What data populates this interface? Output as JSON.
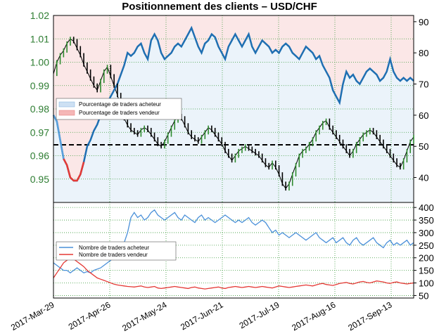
{
  "chart_data": [
    {
      "type": "line",
      "title": "Positionnement des clients – USD/CHF",
      "x_labels": [
        "2017-Mar-29",
        "2017-Apr-26",
        "2017-May-24",
        "2017-Jun-21",
        "2017-Jul-19",
        "2017-Aug-16",
        "2017-Sep-13"
      ],
      "left_axis": {
        "ylim": [
          0.94,
          1.02
        ],
        "ticks": [
          "1.02",
          "1.01",
          "1.00",
          "0.99",
          "0.98",
          "0.97",
          "0.96",
          "0.95"
        ]
      },
      "right_axis": {
        "ylim": [
          32,
          92
        ],
        "ticks": [
          "90",
          "80",
          "70",
          "60",
          "50",
          "40"
        ]
      },
      "reference_line": 50.5,
      "legend": [
        "Pourcentage de traders acheteur",
        "Pourcentage de traders vendeur"
      ],
      "series": [
        {
          "name": "Pourcentage de traders acheteur",
          "color": "#1f6fb2",
          "values": [
            60,
            58,
            52,
            46,
            44,
            40,
            39,
            39,
            41,
            45,
            50,
            52,
            55,
            57,
            60,
            62,
            64,
            66,
            68,
            70,
            73,
            76,
            80,
            79,
            80,
            82,
            83,
            80,
            78,
            84,
            86,
            84,
            80,
            78,
            79,
            80,
            82,
            83,
            82,
            84,
            86,
            88,
            85,
            82,
            80,
            83,
            84,
            86,
            85,
            82,
            80,
            78,
            82,
            84,
            86,
            84,
            82,
            84,
            86,
            82,
            80,
            82,
            84,
            83,
            82,
            80,
            81,
            80,
            82,
            83,
            82,
            80,
            79,
            78,
            80,
            82,
            81,
            80,
            78,
            79,
            76,
            74,
            72,
            68,
            66,
            64,
            70,
            74,
            72,
            73,
            71,
            70,
            72,
            74,
            75,
            74,
            73,
            71,
            72,
            74,
            78,
            74,
            72,
            71,
            72,
            71,
            72,
            71
          ]
        },
        {
          "name": "USD/CHF",
          "color": "#000000",
          "values": [
            0.995,
            1.0,
            1.003,
            1.005,
            1.008,
            1.01,
            1.009,
            1.006,
            1.003,
            0.999,
            0.996,
            0.993,
            0.99,
            0.988,
            0.992,
            0.996,
            0.998,
            0.994,
            0.99,
            0.986,
            0.98,
            0.976,
            0.973,
            0.971,
            0.97,
            0.969,
            0.971,
            0.972,
            0.971,
            0.969,
            0.967,
            0.965,
            0.964,
            0.966,
            0.969,
            0.972,
            0.975,
            0.977,
            0.976,
            0.973,
            0.97,
            0.968,
            0.967,
            0.966,
            0.968,
            0.97,
            0.972,
            0.971,
            0.969,
            0.967,
            0.965,
            0.962,
            0.96,
            0.958,
            0.96,
            0.962,
            0.963,
            0.964,
            0.963,
            0.962,
            0.961,
            0.96,
            0.958,
            0.956,
            0.955,
            0.957,
            0.955,
            0.952,
            0.948,
            0.946,
            0.948,
            0.952,
            0.956,
            0.96,
            0.962,
            0.963,
            0.965,
            0.967,
            0.97,
            0.972,
            0.974,
            0.975,
            0.972,
            0.97,
            0.968,
            0.966,
            0.964,
            0.962,
            0.96,
            0.962,
            0.965,
            0.967,
            0.969,
            0.97,
            0.971,
            0.97,
            0.968,
            0.966,
            0.964,
            0.962,
            0.96,
            0.958,
            0.956,
            0.955,
            0.958,
            0.962,
            0.966,
            0.968
          ]
        }
      ]
    },
    {
      "type": "line",
      "ylim": [
        40,
        420
      ],
      "right_axis": {
        "ticks": [
          "400",
          "350",
          "300",
          "250",
          "200",
          "150",
          "100",
          "50"
        ]
      },
      "legend": [
        "Nombre de traders acheteur",
        "Nombre de traders vendeur"
      ],
      "series": [
        {
          "name": "Nombre de traders acheteur",
          "color": "#4a90d9",
          "values": [
            180,
            170,
            160,
            150,
            150,
            140,
            150,
            160,
            150,
            140,
            145,
            140,
            150,
            155,
            160,
            170,
            180,
            190,
            200,
            210,
            230,
            260,
            300,
            360,
            380,
            360,
            370,
            350,
            360,
            380,
            390,
            370,
            360,
            350,
            360,
            370,
            380,
            360,
            350,
            370,
            360,
            350,
            340,
            360,
            370,
            350,
            360,
            350,
            340,
            350,
            360,
            370,
            360,
            350,
            340,
            350,
            340,
            350,
            360,
            340,
            330,
            340,
            350,
            340,
            320,
            300,
            310,
            290,
            300,
            290,
            280,
            290,
            300,
            290,
            280,
            270,
            280,
            290,
            300,
            280,
            270,
            260,
            270,
            280,
            260,
            270,
            280,
            260,
            250,
            270,
            280,
            260,
            250,
            260,
            270,
            280,
            260,
            250,
            240,
            260,
            270,
            250,
            260,
            250,
            260,
            270,
            250,
            260
          ]
        },
        {
          "name": "Nombre de traders vendeur",
          "color": "#e53935",
          "values": [
            120,
            140,
            160,
            180,
            190,
            200,
            195,
            185,
            175,
            165,
            150,
            140,
            130,
            120,
            115,
            110,
            105,
            100,
            95,
            92,
            90,
            88,
            86,
            85,
            84,
            86,
            88,
            84,
            82,
            84,
            86,
            80,
            78,
            80,
            82,
            84,
            86,
            84,
            82,
            80,
            78,
            82,
            84,
            80,
            78,
            76,
            78,
            80,
            82,
            84,
            80,
            78,
            82,
            84,
            86,
            84,
            82,
            84,
            86,
            84,
            82,
            84,
            86,
            84,
            82,
            80,
            84,
            88,
            86,
            84,
            82,
            84,
            86,
            88,
            90,
            92,
            90,
            88,
            92,
            96,
            98,
            94,
            92,
            90,
            94,
            98,
            100,
            102,
            98,
            96,
            100,
            104,
            106,
            102,
            100,
            104,
            108,
            106,
            104,
            100,
            98,
            102,
            104,
            100,
            98,
            96,
            98,
            100
          ]
        }
      ]
    }
  ]
}
